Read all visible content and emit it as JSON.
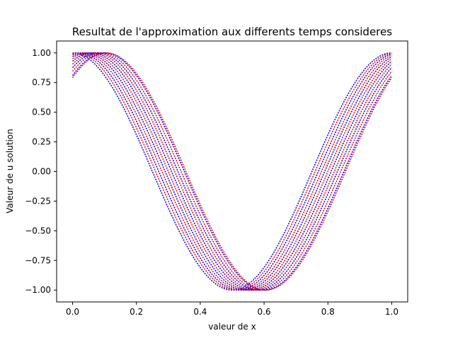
{
  "chart_data": {
    "type": "line",
    "title": "Resultat de l'approximation aux differents temps consideres",
    "xlabel": "valeur de x",
    "ylabel": "Valeur de u solution",
    "xlim": [
      -0.05,
      1.05
    ],
    "ylim": [
      -1.1,
      1.1
    ],
    "x_ticks": [
      "0.0",
      "0.2",
      "0.4",
      "0.6",
      "0.8",
      "1.0"
    ],
    "y_ticks": [
      "1.00",
      "0.75",
      "0.50",
      "0.25",
      "0.00",
      "−0.25",
      "−0.50",
      "−0.75",
      "−1.00"
    ],
    "grid": false,
    "legend": "none",
    "colors": {
      "blue": "#0000ff",
      "red": "#ff0000",
      "frame": "#000000"
    },
    "series": [
      {
        "label_hidden": true,
        "phase_shift": 0.0,
        "color": "#0000ff"
      },
      {
        "label_hidden": true,
        "phase_shift": 0.01,
        "color": "#ff0000"
      },
      {
        "label_hidden": true,
        "phase_shift": 0.02,
        "color": "#0000ff"
      },
      {
        "label_hidden": true,
        "phase_shift": 0.03,
        "color": "#ff0000"
      },
      {
        "label_hidden": true,
        "phase_shift": 0.04,
        "color": "#0000ff"
      },
      {
        "label_hidden": true,
        "phase_shift": 0.05,
        "color": "#ff0000"
      },
      {
        "label_hidden": true,
        "phase_shift": 0.06,
        "color": "#0000ff"
      },
      {
        "label_hidden": true,
        "phase_shift": 0.07,
        "color": "#ff0000"
      },
      {
        "label_hidden": true,
        "phase_shift": 0.08,
        "color": "#0000ff"
      },
      {
        "label_hidden": true,
        "phase_shift": 0.09,
        "color": "#ff0000"
      },
      {
        "label_hidden": true,
        "phase_shift": 0.1,
        "color": "#0000ff"
      },
      {
        "label_hidden": true,
        "phase_shift": 0.105,
        "color": "#ff0000"
      }
    ],
    "function": "u(x) = cos(2*pi*(x - phase_shift)), x in [0, 1]"
  }
}
